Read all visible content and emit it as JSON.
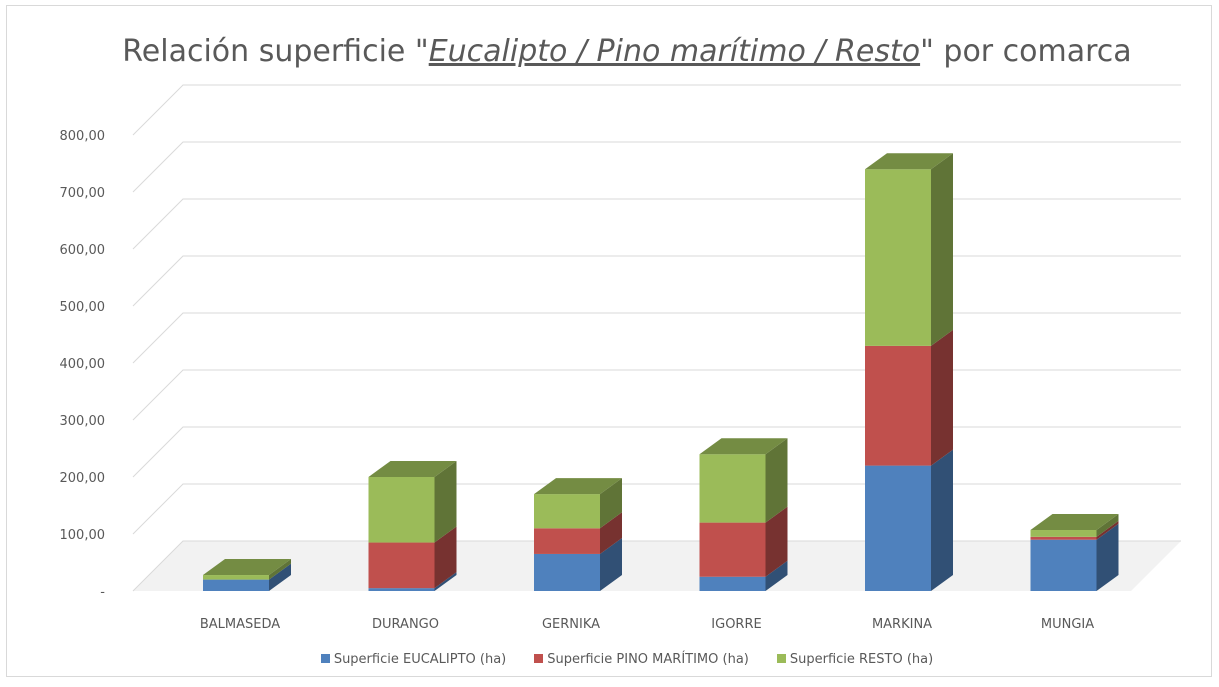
{
  "chart_data": {
    "type": "bar",
    "stacked": true,
    "three_d": true,
    "title_parts": {
      "before": "Relación superficie \"",
      "emphasis": "Eucalipto / Pino marítimo / Resto",
      "after": "\" por comarca"
    },
    "categories": [
      "BALMASEDA",
      "DURANGO",
      "GERNIKA",
      "IGORRE",
      "MARKINA",
      "MUNGIA"
    ],
    "series": [
      {
        "name": "Superficie EUCALIPTO (ha)",
        "color": "#4f81bd",
        "values": [
          20,
          5,
          65,
          25,
          220,
          90
        ]
      },
      {
        "name": "Superficie PINO MARÍTIMO (ha)",
        "color": "#c0504d",
        "values": [
          0,
          80,
          45,
          95,
          210,
          5
        ]
      },
      {
        "name": "Superficie RESTO (ha)",
        "color": "#9bbb59",
        "values": [
          8,
          115,
          60,
          120,
          310,
          12
        ]
      }
    ],
    "y_ticks": [
      "-",
      "100,00",
      "200,00",
      "300,00",
      "400,00",
      "500,00",
      "600,00",
      "700,00",
      "800,00"
    ],
    "ylim": [
      0,
      850
    ],
    "grid": true,
    "legend_position": "bottom"
  }
}
